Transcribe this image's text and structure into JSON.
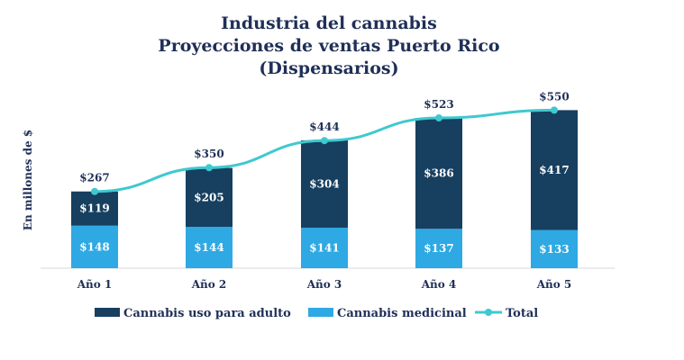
{
  "colors": {
    "adult": "#173f5f",
    "medicinal": "#2ea9e3",
    "total": "#3ec9d0",
    "text": "#1f2f57",
    "axis": "#d9d9d9"
  },
  "chart_data": {
    "type": "bar",
    "stacked": true,
    "title_lines": [
      "Industria del cannabis",
      "Proyecciones de ventas Puerto Rico",
      "(Dispensarios)"
    ],
    "ylabel": "En millones de $",
    "xlabel": "",
    "categories": [
      "Año 1",
      "Año 2",
      "Año 3",
      "Año 4",
      "Año 5"
    ],
    "series": [
      {
        "name": "Cannabis medicinal",
        "values": [
          148,
          144,
          141,
          137,
          133
        ],
        "labels": [
          "$148",
          "$144",
          "$141",
          "$137",
          "$133"
        ]
      },
      {
        "name": "Cannabis uso para adulto",
        "values": [
          119,
          205,
          304,
          386,
          417
        ],
        "labels": [
          "$119",
          "$205",
          "$304",
          "$386",
          "$417"
        ]
      }
    ],
    "line_series": {
      "name": "Total",
      "values": [
        267,
        350,
        444,
        523,
        550
      ],
      "labels": [
        "$267",
        "$350",
        "$444",
        "$523",
        "$550"
      ]
    },
    "ylim": [
      0,
      600
    ],
    "grid": false,
    "legend_position": "bottom",
    "legend_items": [
      "Cannabis uso para adulto",
      "Cannabis medicinal",
      "Total"
    ]
  }
}
